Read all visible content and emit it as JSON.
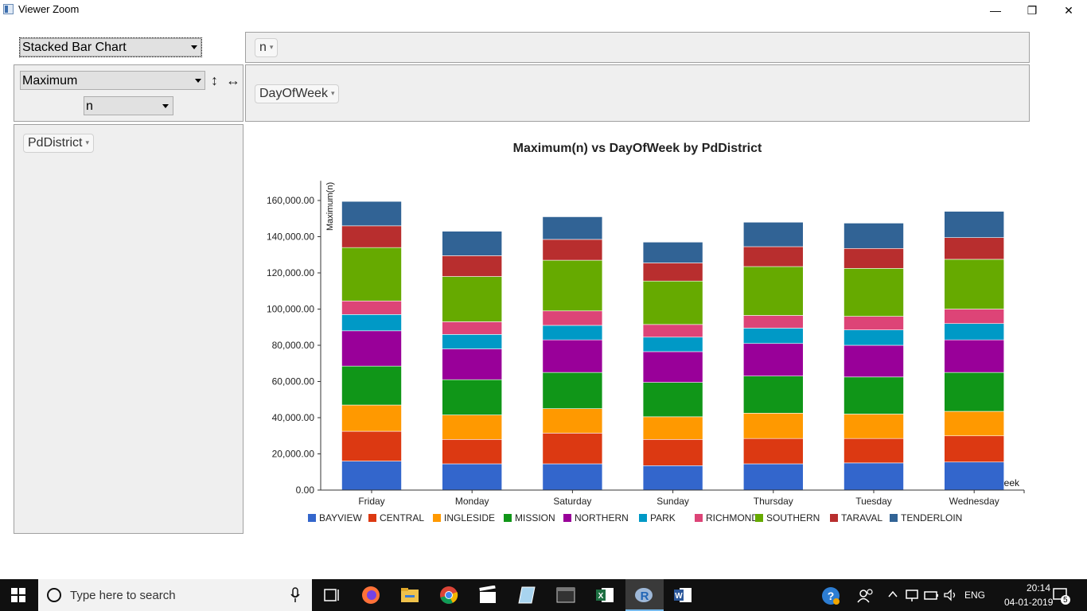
{
  "window": {
    "title": "Viewer Zoom",
    "minimize_glyph": "—",
    "restore_glyph": "❐",
    "close_glyph": "✕"
  },
  "controls": {
    "chart_type": {
      "value": "Stacked Bar Chart",
      "options": [
        "Stacked Bar Chart"
      ]
    },
    "aggregation": {
      "value": "Maximum",
      "options": [
        "Maximum"
      ]
    },
    "measure": {
      "value": "n",
      "options": [
        "n"
      ]
    },
    "sort_vertical_glyph": "↕",
    "sort_horizontal_glyph": "↔",
    "value_field_pill": "n",
    "column_field_pill": "DayOfWeek",
    "row_field_pill": "PdDistrict",
    "pill_arrow": "▾"
  },
  "chart_data": {
    "type": "bar",
    "stacked": true,
    "title": "Maximum(n) vs DayOfWeek by PdDistrict",
    "xlabel": "DayOfWeek",
    "ylabel": "Maximum(n)",
    "ylim": [
      0,
      170000
    ],
    "yticks": [
      "0.00",
      "20,000.00",
      "40,000.00",
      "60,000.00",
      "80,000.00",
      "100,000.00",
      "120,000.00",
      "140,000.00",
      "160,000.00"
    ],
    "ytick_values": [
      0,
      20000,
      40000,
      60000,
      80000,
      100000,
      120000,
      140000,
      160000
    ],
    "legend_position": "bottom",
    "categories": [
      "Friday",
      "Monday",
      "Saturday",
      "Sunday",
      "Thursday",
      "Tuesday",
      "Wednesday"
    ],
    "series": [
      {
        "name": "BAYVIEW",
        "color": "#3366cc",
        "values": [
          16000,
          14500,
          14500,
          13500,
          14500,
          15000,
          15500
        ]
      },
      {
        "name": "CENTRAL",
        "color": "#dc3912",
        "values": [
          16500,
          13500,
          17000,
          14500,
          14000,
          13500,
          14500
        ]
      },
      {
        "name": "INGLESIDE",
        "color": "#ff9900",
        "values": [
          14500,
          13500,
          13500,
          12500,
          14000,
          13500,
          13500
        ]
      },
      {
        "name": "MISSION",
        "color": "#109618",
        "values": [
          21500,
          19500,
          20000,
          19000,
          20500,
          20500,
          21500
        ]
      },
      {
        "name": "NORTHERN",
        "color": "#990099",
        "values": [
          19500,
          17000,
          18000,
          17000,
          18000,
          17500,
          18000
        ]
      },
      {
        "name": "PARK",
        "color": "#0099c6",
        "values": [
          9000,
          8000,
          8000,
          8000,
          8500,
          8500,
          9000
        ]
      },
      {
        "name": "RICHMOND",
        "color": "#dd4477",
        "values": [
          7500,
          7000,
          8000,
          7000,
          7000,
          7500,
          8000
        ]
      },
      {
        "name": "SOUTHERN",
        "color": "#66aa00",
        "values": [
          29500,
          25000,
          28000,
          24000,
          27000,
          26500,
          27500
        ]
      },
      {
        "name": "TARAVAL",
        "color": "#b82e2e",
        "values": [
          12000,
          11500,
          11500,
          10000,
          11000,
          11000,
          12000
        ]
      },
      {
        "name": "TENDERLOIN",
        "color": "#316395",
        "values": [
          13500,
          13500,
          12500,
          11500,
          13500,
          14000,
          14500
        ]
      }
    ]
  },
  "taskbar": {
    "search_placeholder": "Type here to search",
    "language": "ENG",
    "time": "20:14",
    "date": "04-01-2019",
    "notification_count": "5",
    "apps": [
      "task-view",
      "firefox",
      "file-explorer",
      "chrome",
      "video-editor",
      "notepad",
      "terminal",
      "excel",
      "r",
      "word"
    ]
  }
}
